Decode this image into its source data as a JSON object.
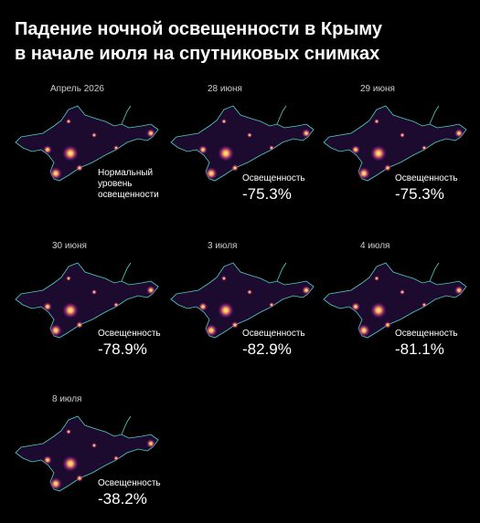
{
  "header": {
    "title_lines": [
      "Падение ночной освещенности в Крыму",
      "в начале июля на спутниковых снимках"
    ]
  },
  "panels": [
    {
      "date": "Апрель 2026",
      "caption_lines": [
        "Нормальный",
        "уровень",
        "освещенности"
      ]
    },
    {
      "date": "28 июня",
      "label": "Освещенность",
      "value": "-75.3%"
    },
    {
      "date": "29 июня",
      "label": "Освещенность",
      "value": "-75.3%"
    },
    {
      "date": "30 июня",
      "label": "Освещенность",
      "value": "-78.9%"
    },
    {
      "date": "3 июля",
      "label": "Освещенность",
      "value": "-82.9%"
    },
    {
      "date": "4 июля",
      "label": "Освещенность",
      "value": "-81.1%"
    },
    {
      "date": "8 июля",
      "label": "Освещенность",
      "value": "-38.2%"
    }
  ]
}
